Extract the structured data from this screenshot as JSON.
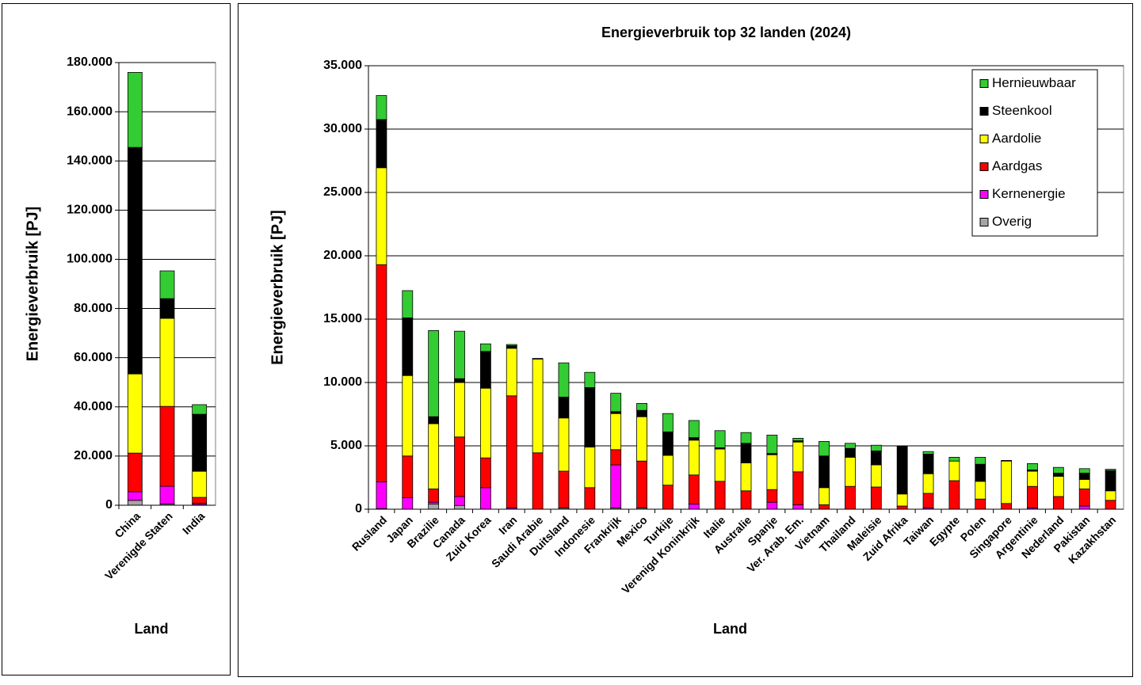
{
  "chart_data": [
    {
      "type": "stacked-bar",
      "y_label": "Energieverbruik [PJ]",
      "x_label": "Land",
      "categories": [
        "China",
        "Verenigde Staten",
        "India"
      ],
      "series": [
        {
          "color": "#a6a6a6",
          "values": [
            2000,
            500,
            300
          ]
        },
        {
          "color": "#ff00ff",
          "values": [
            3500,
            7200,
            500
          ]
        },
        {
          "color": "#ff0000",
          "values": [
            15700,
            32500,
            2400
          ]
        },
        {
          "color": "#ffff00",
          "values": [
            32200,
            35800,
            10600
          ]
        },
        {
          "color": "#000000",
          "values": [
            92100,
            8000,
            23200
          ]
        },
        {
          "color": "#33cc33",
          "values": [
            30500,
            11300,
            3900
          ]
        }
      ],
      "ylim": [
        0,
        180000
      ],
      "yticks": [
        0,
        {
          "value": 20000,
          "label": "20.000"
        },
        {
          "value": 40000,
          "label": "40.000"
        },
        {
          "value": 60000,
          "label": "60.000"
        },
        {
          "value": 80000,
          "label": "80.000"
        },
        {
          "value": 100000,
          "label": "100.000"
        },
        {
          "value": 120000,
          "label": "120.000"
        },
        {
          "value": 140000,
          "label": "140.000"
        },
        {
          "value": 160000,
          "label": "160.000"
        },
        {
          "value": 180000,
          "label": "180.000"
        }
      ],
      "grid": true
    },
    {
      "type": "stacked-bar",
      "title": "Energieverbruik top 32 landen (2024)",
      "y_label": "Energieverbruik [PJ]",
      "x_label": "Land",
      "categories": [
        "Rusland",
        "Japan",
        "Brazilie",
        "Canada",
        "Zuid Korea",
        "Iran",
        "Saudi Arabie",
        "Duitsland",
        "Indonesie",
        "Frankrijk",
        "Mexico",
        "Turkije",
        "Verenigd Koninkrijk",
        "Italie",
        "Australie",
        "Spanje",
        "Ver. Arab. Em.",
        "Vietnam",
        "Thailand",
        "Maleisie",
        "Zuid Afrika",
        "Taiwan",
        "Egypte",
        "Polen",
        "Singapore",
        "Argentinie",
        "Nederland",
        "Pakistan",
        "Kazakhstan"
      ],
      "series": [
        {
          "name": "Overig",
          "color": "#a6a6a6",
          "values": [
            50,
            0,
            400,
            300,
            0,
            0,
            0,
            100,
            0,
            100,
            100,
            0,
            0,
            0,
            0,
            0,
            0,
            0,
            0,
            0,
            0,
            0,
            0,
            0,
            0,
            0,
            0,
            0,
            0
          ]
        },
        {
          "name": "Kernenergie",
          "color": "#ff00ff",
          "values": [
            2100,
            900,
            150,
            700,
            1700,
            100,
            0,
            0,
            0,
            3400,
            0,
            0,
            400,
            0,
            0,
            550,
            350,
            0,
            0,
            0,
            0,
            100,
            0,
            0,
            0,
            100,
            0,
            250,
            0
          ]
        },
        {
          "name": "Aardgas",
          "color": "#ff0000",
          "values": [
            17150,
            3300,
            1050,
            4700,
            2350,
            8850,
            4450,
            2900,
            1700,
            1200,
            3700,
            1900,
            2300,
            2200,
            1450,
            1000,
            2600,
            350,
            1800,
            1750,
            250,
            1150,
            2250,
            800,
            450,
            1700,
            1000,
            1350,
            700
          ]
        },
        {
          "name": "Aardolie",
          "color": "#ffff00",
          "values": [
            7650,
            6350,
            5150,
            4300,
            5500,
            3750,
            7400,
            4200,
            3200,
            2850,
            3500,
            2350,
            2750,
            2550,
            2200,
            2750,
            2350,
            1350,
            2300,
            1750,
            950,
            1550,
            1550,
            1400,
            3350,
            1200,
            1600,
            750,
            750
          ]
        },
        {
          "name": "Steenkool",
          "color": "#000000",
          "values": [
            3800,
            4550,
            550,
            300,
            2900,
            200,
            0,
            1650,
            4700,
            150,
            500,
            1850,
            200,
            100,
            1550,
            100,
            100,
            2500,
            700,
            1100,
            3800,
            1550,
            0,
            1350,
            0,
            100,
            250,
            500,
            1600
          ]
        },
        {
          "name": "Hernieuwbaar",
          "color": "#33cc33",
          "values": [
            1900,
            2150,
            6800,
            3750,
            600,
            100,
            50,
            2700,
            1200,
            1450,
            550,
            1450,
            1350,
            1350,
            850,
            1450,
            200,
            1150,
            400,
            450,
            0,
            200,
            300,
            550,
            50,
            500,
            450,
            350,
            100
          ]
        }
      ],
      "ylim": [
        0,
        35000
      ],
      "yticks": [
        0,
        {
          "value": 5000,
          "label": "5.000"
        },
        {
          "value": 10000,
          "label": "10.000"
        },
        {
          "value": 15000,
          "label": "15.000"
        },
        {
          "value": 20000,
          "label": "20.000"
        },
        {
          "value": 25000,
          "label": "25.000"
        },
        {
          "value": 30000,
          "label": "30.000"
        },
        {
          "value": 35000,
          "label": "35.000"
        }
      ],
      "grid": true,
      "legend": "top-right"
    }
  ]
}
